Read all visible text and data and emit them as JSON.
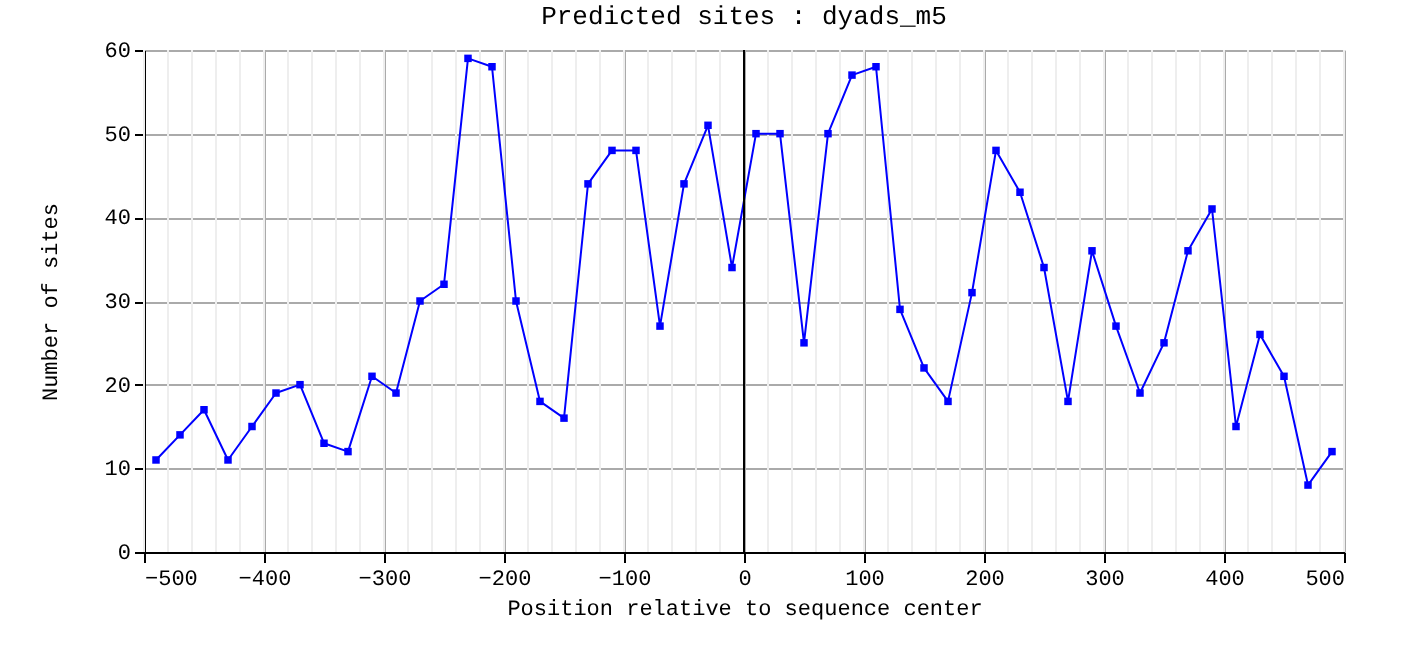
{
  "chart_data": {
    "type": "line",
    "title": "Predicted sites : dyads_m5",
    "xlabel": "Position relative to sequence center",
    "ylabel": "Number of sites",
    "x": [
      -490,
      -470,
      -450,
      -430,
      -410,
      -390,
      -370,
      -350,
      -330,
      -310,
      -290,
      -270,
      -250,
      -230,
      -210,
      -190,
      -170,
      -150,
      -130,
      -110,
      -90,
      -70,
      -50,
      -30,
      -10,
      10,
      30,
      50,
      70,
      90,
      110,
      130,
      150,
      170,
      190,
      210,
      230,
      250,
      270,
      290,
      310,
      330,
      350,
      370,
      390,
      410,
      430,
      450,
      470,
      490
    ],
    "series": [
      {
        "color": "#0000ff",
        "values": [
          11,
          14,
          17,
          11,
          15,
          19,
          20,
          13,
          12,
          21,
          19,
          30,
          32,
          59,
          58,
          30,
          18,
          16,
          44,
          48,
          48,
          27,
          44,
          51,
          34,
          50,
          50,
          25,
          50,
          57,
          58,
          29,
          22,
          18,
          31,
          48,
          43,
          34,
          18,
          36,
          27,
          19,
          25,
          36,
          41,
          15,
          26,
          21,
          8,
          12
        ]
      }
    ],
    "xlim": [
      -500,
      500
    ],
    "ylim": [
      0,
      60
    ],
    "xticks": [
      -500,
      -400,
      -300,
      -200,
      -100,
      0,
      100,
      200,
      300,
      400,
      500
    ],
    "yticks": [
      0,
      10,
      20,
      30,
      40,
      50,
      60
    ],
    "ref_lines": [
      {
        "axis": "x",
        "value": 0,
        "color": "#000000"
      }
    ],
    "grid": true,
    "marker": "square",
    "line_style": "solid",
    "legend": false
  }
}
